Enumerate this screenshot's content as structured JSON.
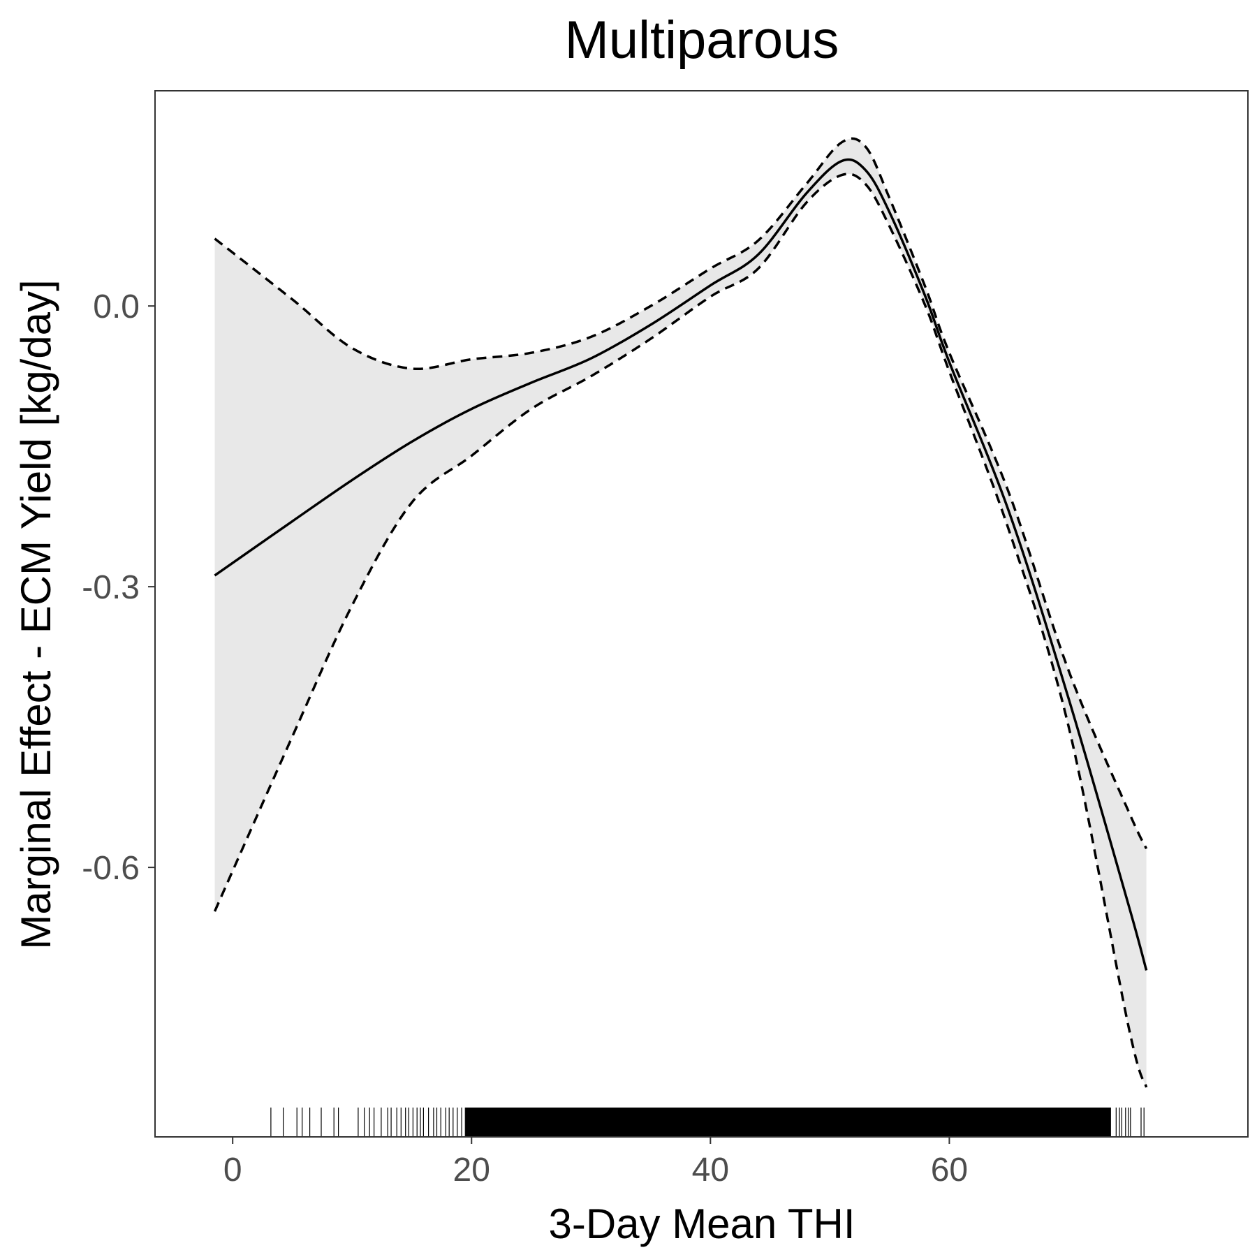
{
  "chart_data": {
    "type": "line",
    "title": "Multiparous",
    "xlabel": "3-Day Mean THI",
    "ylabel": "Marginal Effect - ECM Yield [kg/day]",
    "xlim": [
      -6.5,
      85
    ],
    "ylim": [
      -0.888,
      0.23
    ],
    "x_ticks": [
      0,
      20,
      40,
      60
    ],
    "x_tick_labels": [
      "0",
      "20",
      "40",
      "60"
    ],
    "y_ticks": [
      0.0,
      -0.3,
      -0.6
    ],
    "y_tick_labels": [
      "0.0",
      "-0.3",
      "-0.6"
    ],
    "grid": false,
    "band_color": "#e8e8e8",
    "line_color": "#000000",
    "series": [
      {
        "role": "estimate",
        "style": "solid",
        "x": [
          -1.5,
          5,
          10,
          15,
          20,
          25,
          30,
          35,
          40,
          44,
          48,
          51,
          53,
          55,
          58,
          60,
          65,
          70,
          75,
          76.5
        ],
        "y": [
          -0.288,
          -0.23,
          -0.186,
          -0.145,
          -0.11,
          -0.082,
          -0.056,
          -0.02,
          0.022,
          0.055,
          0.12,
          0.155,
          0.145,
          0.1,
          0.01,
          -0.06,
          -0.22,
          -0.42,
          -0.64,
          -0.71
        ]
      },
      {
        "role": "upper",
        "style": "dashed",
        "x": [
          -1.5,
          5,
          10,
          15,
          20,
          25,
          30,
          35,
          40,
          44,
          48,
          51,
          53,
          55,
          58,
          60,
          65,
          70,
          75,
          76.5
        ],
        "y": [
          0.072,
          0.007,
          -0.045,
          -0.067,
          -0.057,
          -0.05,
          -0.033,
          0.0,
          0.04,
          0.07,
          0.13,
          0.175,
          0.17,
          0.115,
          0.02,
          -0.05,
          -0.2,
          -0.39,
          -0.54,
          -0.58
        ]
      },
      {
        "role": "lower",
        "style": "dashed",
        "x": [
          -1.5,
          5,
          10,
          15,
          20,
          25,
          30,
          35,
          40,
          44,
          48,
          51,
          53,
          55,
          58,
          60,
          65,
          70,
          75,
          76.5
        ],
        "y": [
          -0.647,
          -0.46,
          -0.32,
          -0.21,
          -0.16,
          -0.11,
          -0.075,
          -0.035,
          0.01,
          0.04,
          0.11,
          0.14,
          0.13,
          0.085,
          0.0,
          -0.07,
          -0.24,
          -0.45,
          -0.77,
          -0.835
        ]
      }
    ],
    "rug": {
      "x_min": 3.2,
      "x_max": 76.3,
      "dense_from": 19.5,
      "dense_to": 73.5
    }
  }
}
